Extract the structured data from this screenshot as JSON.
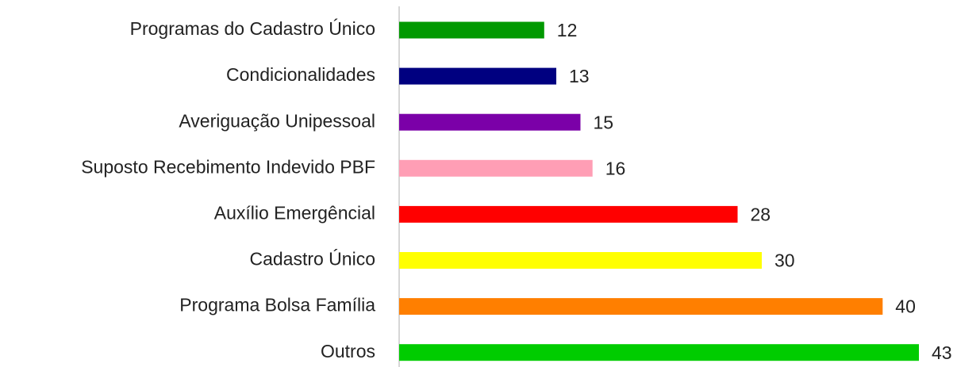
{
  "chart_data": {
    "type": "bar",
    "orientation": "horizontal",
    "categories": [
      "Programas do Cadastro Único",
      "Condicionalidades",
      "Averiguação Unipessoal",
      "Suposto Recebimento Indevido PBF",
      "Auxílio Emergêncial",
      "Cadastro Único",
      "Programa Bolsa Família",
      "Outros"
    ],
    "values": [
      12,
      13,
      15,
      16,
      28,
      30,
      40,
      43
    ],
    "colors": [
      "#009900",
      "#000080",
      "#7b00a8",
      "#ff9eb5",
      "#ff0000",
      "#ffff00",
      "#ff7f00",
      "#00cc00"
    ]
  }
}
